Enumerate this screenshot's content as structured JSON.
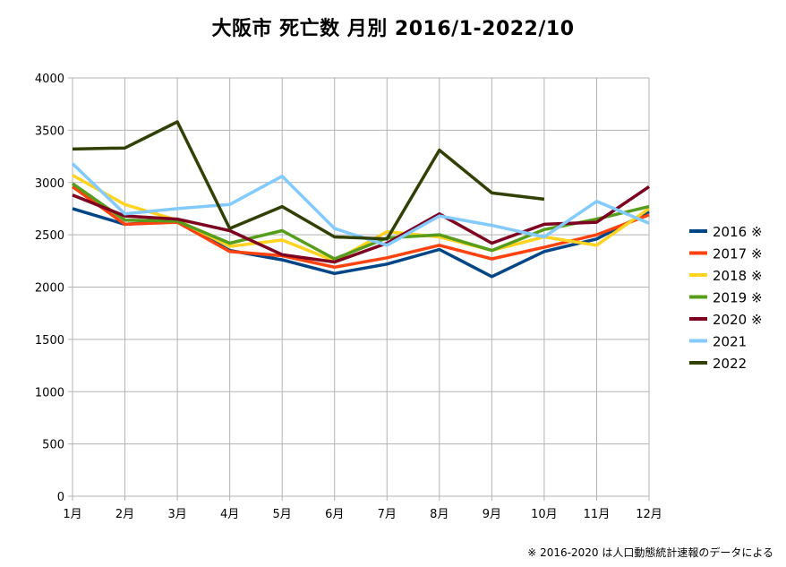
{
  "chart_data": {
    "type": "line",
    "title": "大阪市  死亡数  月別  2016/1-2022/10",
    "xlabel": "",
    "ylabel": "",
    "categories": [
      "1月",
      "2月",
      "3月",
      "4月",
      "5月",
      "6月",
      "7月",
      "8月",
      "9月",
      "10月",
      "11月",
      "12月"
    ],
    "ylim": [
      0,
      4000
    ],
    "yticks": [
      0,
      500,
      1000,
      1500,
      2000,
      2500,
      3000,
      3500,
      4000
    ],
    "grid": true,
    "legend_position": "right",
    "series": [
      {
        "name": "2016 ※",
        "color": "#004586",
        "values": [
          2750,
          2600,
          2630,
          2350,
          2260,
          2130,
          2220,
          2360,
          2100,
          2340,
          2460,
          2720
        ]
      },
      {
        "name": "2017 ※",
        "color": "#ff420e",
        "values": [
          2960,
          2600,
          2620,
          2340,
          2300,
          2190,
          2280,
          2400,
          2270,
          2380,
          2500,
          2690
        ]
      },
      {
        "name": "2018 ※",
        "color": "#ffd320",
        "values": [
          3070,
          2790,
          2640,
          2390,
          2450,
          2250,
          2530,
          2480,
          2350,
          2480,
          2400,
          2750
        ]
      },
      {
        "name": "2019 ※",
        "color": "#579d1c",
        "values": [
          2990,
          2640,
          2630,
          2420,
          2540,
          2270,
          2470,
          2500,
          2350,
          2550,
          2650,
          2770
        ]
      },
      {
        "name": "2020 ※",
        "color": "#7e0021",
        "values": [
          2880,
          2680,
          2650,
          2540,
          2310,
          2240,
          2420,
          2700,
          2420,
          2600,
          2620,
          2960
        ]
      },
      {
        "name": "2021",
        "color": "#83caff",
        "values": [
          3180,
          2700,
          2750,
          2790,
          3060,
          2560,
          2400,
          2680,
          2590,
          2480,
          2820,
          2610
        ]
      },
      {
        "name": "2022",
        "color": "#314004",
        "values": [
          3320,
          3330,
          3580,
          2560,
          2770,
          2480,
          2460,
          3310,
          2900,
          2840,
          null,
          null
        ]
      }
    ]
  },
  "footnote": "※  2016-2020  は人口動態統計速報のデータによる"
}
